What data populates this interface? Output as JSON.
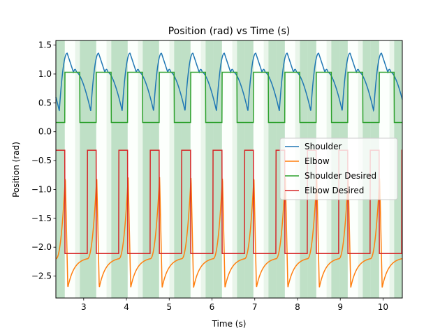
{
  "chart_data": {
    "type": "line",
    "title": "Position (rad) vs Time (s)",
    "xlabel": "Time (s)",
    "ylabel": "Position (rad)",
    "xlim": [
      2.35,
      10.45
    ],
    "ylim": [
      -2.88,
      1.58
    ],
    "xticks": [
      3,
      4,
      5,
      6,
      7,
      8,
      9,
      10
    ],
    "xtick_labels": [
      "3",
      "4",
      "5",
      "6",
      "7",
      "8",
      "9",
      "10"
    ],
    "yticks": [
      1.5,
      1.0,
      0.5,
      0.0,
      -0.5,
      -1.0,
      -1.5,
      -2.0,
      -2.5
    ],
    "ytick_labels": [
      "1.5",
      "1.0",
      "0.5",
      "0.0",
      "−0.5",
      "−1.0",
      "−1.5",
      "−2.0",
      "−2.5"
    ],
    "grid": false,
    "legend_position": "center-right",
    "background_bands": {
      "period": 0.735,
      "start": 2.35,
      "segments": [
        {
          "start": 0.0,
          "end": 0.21,
          "color": "#bfe0c6"
        },
        {
          "start": 0.21,
          "end": 0.45,
          "color": "#fcfffc"
        },
        {
          "start": 0.45,
          "end": 0.56,
          "color": "#e9f5ea"
        },
        {
          "start": 0.56,
          "end": 0.735,
          "color": "#bfe0c6"
        }
      ]
    },
    "series": [
      {
        "name": "Shoulder",
        "color": "#1f77b4",
        "shape": "shoulder",
        "params": {
          "period": 0.735,
          "phase": 0.08,
          "min": 0.36,
          "peak": 1.36,
          "settle": 1.03,
          "base": 1.0
        }
      },
      {
        "name": "Elbow",
        "color": "#ff7f0e",
        "shape": "elbow",
        "params": {
          "period": 0.735,
          "phase": 0.0,
          "min": -2.7,
          "peak": -0.78,
          "base": -2.2
        }
      },
      {
        "name": "Shoulder Desired",
        "color": "#2ca02c",
        "shape": "square",
        "params": {
          "period": 0.735,
          "phase": 0.0,
          "high": 1.03,
          "low": 0.16,
          "high_start": 0.21,
          "high_end": 0.56
        }
      },
      {
        "name": "Elbow Desired",
        "color": "#d62728",
        "shape": "square",
        "params": {
          "period": 0.735,
          "phase": 0.0,
          "high": -0.32,
          "low": -2.11,
          "high_start": 0.0,
          "high_end": 0.21
        }
      }
    ]
  }
}
